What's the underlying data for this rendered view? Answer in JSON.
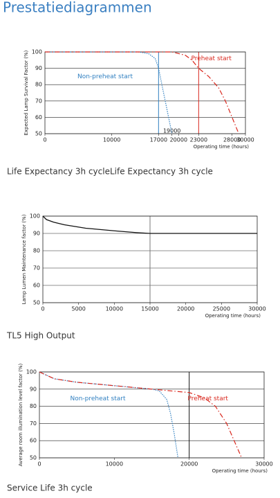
{
  "title": "Prestatiediagrammen",
  "chart_data": [
    {
      "type": "line",
      "caption": "Life Expectancy 3h cycleLife Expectancy 3h cycle",
      "ylabel": "Expected Lamp Survival Factor (%)",
      "xlabel": "Operating time (hours)",
      "xlim": [
        0,
        30000
      ],
      "ylim": [
        50,
        100
      ],
      "xticks": [
        0,
        10000,
        17000,
        19000,
        20000,
        23000,
        28000,
        30000
      ],
      "yticks": [
        50,
        60,
        70,
        80,
        90,
        100
      ],
      "grid": true,
      "vlines": [
        {
          "value": 17000,
          "color": "#2f7fc0"
        },
        {
          "value": 23000,
          "color": "#d9261c"
        }
      ],
      "series": [
        {
          "name": "Non-preheat start",
          "color": "#2f7fc0",
          "style": "dotted",
          "x": [
            0,
            14000,
            15500,
            16500,
            17000,
            17500,
            18000,
            18500,
            19000
          ],
          "values": [
            100,
            100,
            99,
            96,
            90,
            80,
            70,
            60,
            50
          ]
        },
        {
          "name": "Preheat start",
          "color": "#d9261c",
          "style": "dashdot",
          "x": [
            0,
            19000,
            21000,
            22000,
            23000,
            24500,
            26000,
            27000,
            28000,
            29000
          ],
          "values": [
            100,
            100,
            98,
            95,
            90,
            85,
            78,
            70,
            60,
            50
          ]
        }
      ]
    },
    {
      "type": "line",
      "caption": "TL5 High Output",
      "ylabel": "Lamp Lumen Maintenance factor (%)",
      "xlabel": "Operating time (hours)",
      "xlim": [
        0,
        30000
      ],
      "ylim": [
        50,
        100
      ],
      "xticks": [
        0,
        5000,
        10000,
        15000,
        20000,
        25000,
        30000
      ],
      "yticks": [
        50,
        60,
        70,
        80,
        90,
        100
      ],
      "grid": true,
      "vlines": [
        {
          "value": 15000,
          "color": "#777777"
        }
      ],
      "series": [
        {
          "color": "#111111",
          "style": "solid",
          "x": [
            0,
            500,
            1500,
            3000,
            6000,
            10000,
            13000,
            15000,
            30000
          ],
          "values": [
            100,
            98,
            96.5,
            95,
            93,
            91.5,
            90.5,
            90,
            90
          ]
        }
      ]
    },
    {
      "type": "line",
      "caption": "Service Life 3h cycle",
      "ylabel": "Average room illumination level factor (%)",
      "xlabel": "Operating time (hours)",
      "xlim": [
        0,
        30000
      ],
      "ylim": [
        50,
        100
      ],
      "xticks": [
        0,
        10000,
        20000,
        30000
      ],
      "yticks": [
        50,
        60,
        70,
        80,
        90,
        100
      ],
      "grid": true,
      "vlines": [
        {
          "value": 20000,
          "color": "#111111"
        }
      ],
      "series": [
        {
          "name": "Non-preheat start",
          "color": "#2f7fc0",
          "style": "dotted",
          "x": [
            0,
            2000,
            5000,
            10000,
            15000,
            16000,
            17000,
            17500,
            18000,
            18500
          ],
          "values": [
            100,
            96,
            94,
            92,
            90,
            89,
            84,
            76,
            64,
            50
          ]
        },
        {
          "name": "Preheat start",
          "color": "#d9261c",
          "style": "dashdot",
          "x": [
            0,
            2000,
            5000,
            10000,
            15000,
            20000,
            22000,
            23500,
            25000,
            26000,
            27000
          ],
          "values": [
            100,
            96,
            94,
            92,
            90,
            88,
            85,
            80,
            70,
            60,
            50
          ]
        }
      ]
    }
  ]
}
